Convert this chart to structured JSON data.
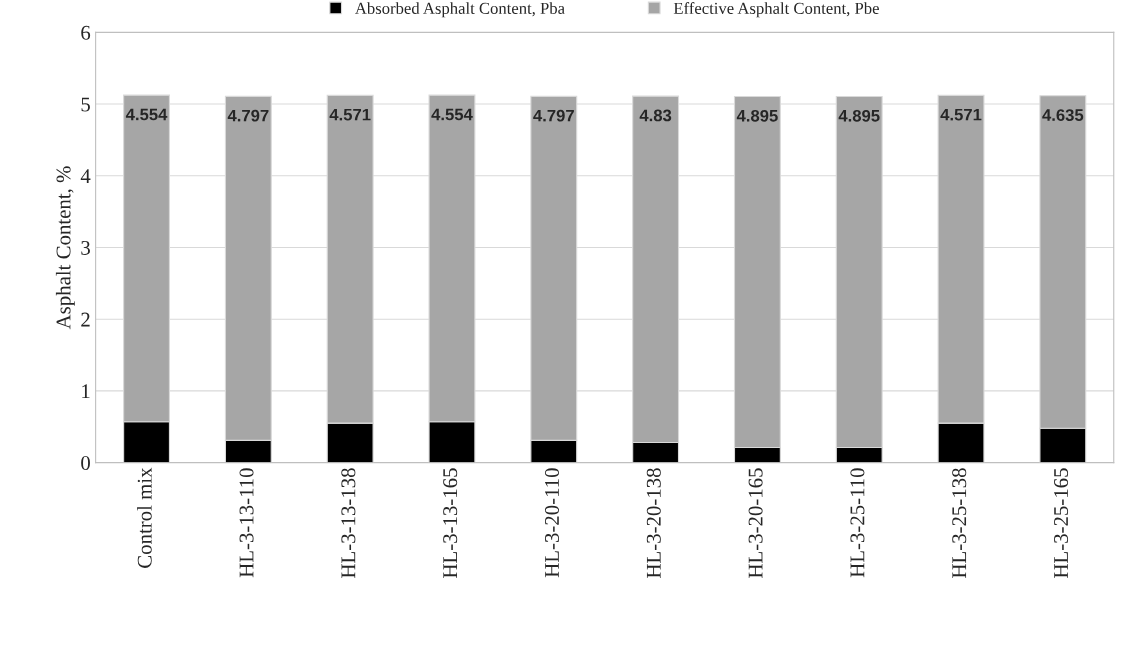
{
  "chart_data": {
    "type": "bar",
    "stacked": true,
    "ylabel": "Asphalt Content, %",
    "categories": [
      "Control mix",
      "HL-3-13-110",
      "HL-3-13-138",
      "HL-3-13-165",
      "HL-3-20-110",
      "HL-3-20-138",
      "HL-3-20-165",
      "HL-3-25-110",
      "HL-3-25-138",
      "HL-3-25-165"
    ],
    "series": [
      {
        "name": "Absorbed Asphalt Content, Pba",
        "color": "#000000",
        "values": [
          0.57,
          0.31,
          0.55,
          0.57,
          0.31,
          0.28,
          0.21,
          0.21,
          0.55,
          0.48
        ]
      },
      {
        "name": "Effective Asphalt Content, Pbe",
        "color": "#a6a6a6",
        "values": [
          4.554,
          4.797,
          4.571,
          4.554,
          4.797,
          4.83,
          4.895,
          4.895,
          4.571,
          4.635
        ],
        "value_labels": [
          "4.554",
          "4.797",
          "4.571",
          "4.554",
          "4.797",
          "4.83",
          "4.895",
          "4.895",
          "4.571",
          "4.635"
        ]
      }
    ],
    "ylim": [
      0,
      6
    ],
    "yticks": [
      0,
      1,
      2,
      3,
      4,
      5,
      6
    ],
    "grid": "y",
    "legend": "top"
  }
}
